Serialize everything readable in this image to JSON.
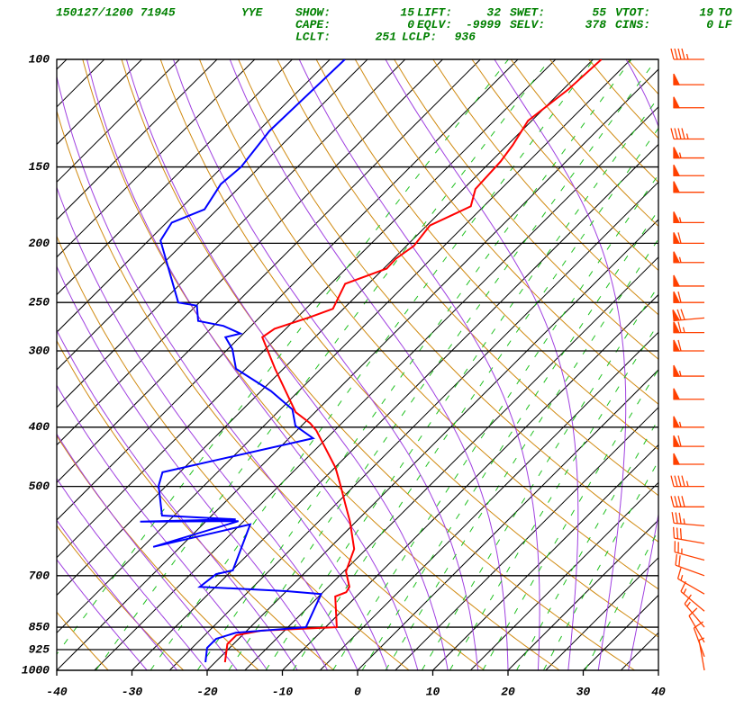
{
  "header": {
    "time_station": "150127/1200 71945",
    "station": "YYE",
    "rows": [
      [
        {
          "label": "SHOW:",
          "value": 15
        },
        {
          "label": "LIFT:",
          "value": 32
        },
        {
          "label": "SWET:",
          "value": 55
        },
        {
          "label": "VTOT:",
          "value": 19
        },
        {
          "label": "TO"
        }
      ],
      [
        {
          "label": "CAPE:",
          "value": 0
        },
        {
          "label": "EQLV:",
          "value": -9999
        },
        {
          "label": "SELV:",
          "value": 378
        },
        {
          "label": "CINS:",
          "value": 0
        },
        {
          "label": "LF"
        }
      ],
      [
        {
          "label": "LCLT:",
          "value": 251
        },
        {
          "label": "LCLP:",
          "value": 936
        }
      ]
    ]
  },
  "chart_data": {
    "type": "skewt",
    "xlim": [
      -40,
      40
    ],
    "xticks": [
      -40,
      -30,
      -20,
      -10,
      0,
      10,
      20,
      30,
      40
    ],
    "ylim": [
      1000,
      100
    ],
    "yticks": [
      100,
      150,
      200,
      250,
      300,
      400,
      500,
      700,
      850,
      925,
      1000
    ],
    "log_scale": true,
    "grid": true,
    "series": [
      {
        "color": "#ff0000",
        "p": [
          970,
          906,
          876,
          861,
          850,
          757,
          745,
          730,
          689,
          633,
          571,
          534,
          499,
          466,
          405,
          394,
          378,
          321,
          285,
          276,
          264,
          256,
          233,
          220,
          212,
          202,
          187,
          174,
          163,
          147,
          138,
          126,
          112,
          100
        ],
        "values": [
          -18.7,
          -20.8,
          -20.8,
          -18.1,
          -8.5,
          -12.8,
          -11.9,
          -12.2,
          -14.7,
          -16.6,
          -20.8,
          -23.8,
          -26.8,
          -29.9,
          -37.4,
          -39.2,
          -42.6,
          -51.1,
          -57.0,
          -56.5,
          -53.3,
          -51.4,
          -53.1,
          -49.6,
          -49.7,
          -49.0,
          -49.6,
          -46.7,
          -48.4,
          -48.7,
          -49.3,
          -50.5,
          -49.3,
          -48.9
        ]
      },
      {
        "color": "#0000ff",
        "p": [
          970,
          919,
          888,
          868,
          850,
          750,
          742,
          730,
          696,
          686,
          577,
          628,
          570,
          571,
          566,
          558,
          499,
          474,
          417,
          398,
          374,
          349,
          321,
          298,
          285,
          281,
          273,
          268,
          253,
          250,
          198,
          185,
          176,
          160,
          150,
          131,
          100
        ],
        "values": [
          -21.3,
          -23.0,
          -23.0,
          -21.2,
          -12.6,
          -15.0,
          -20.0,
          -32.1,
          -31.6,
          -29.9,
          -33.7,
          -43.6,
          -35.7,
          -48.7,
          -36.3,
          -46.6,
          -51.0,
          -52.3,
          -36.8,
          -40.8,
          -43.4,
          -48.7,
          -56.3,
          -59.4,
          -61.9,
          -60.4,
          -63.7,
          -67.7,
          -69.9,
          -72.8,
          -83.4,
          -84.3,
          -81.7,
          -82.9,
          -82.5,
          -83.5,
          -83.0
        ]
      }
    ],
    "winds": {
      "color": "#ff4000",
      "p": [
        100,
        110,
        120,
        135,
        145,
        155,
        165,
        185,
        200,
        215,
        235,
        250,
        265,
        280,
        300,
        330,
        360,
        400,
        430,
        460,
        500,
        540,
        580,
        620,
        660,
        700,
        750,
        800,
        850,
        900,
        950,
        1000
      ],
      "direction": [
        270,
        270,
        270,
        270,
        270,
        270,
        270,
        270,
        270,
        270,
        270,
        270,
        265,
        270,
        270,
        270,
        270,
        270,
        270,
        270,
        270,
        270,
        275,
        280,
        285,
        290,
        300,
        310,
        320,
        330,
        340,
        350
      ],
      "speed": [
        45,
        50,
        50,
        45,
        55,
        50,
        50,
        55,
        60,
        55,
        50,
        60,
        70,
        65,
        60,
        55,
        50,
        55,
        60,
        50,
        45,
        40,
        35,
        30,
        25,
        20,
        15,
        15,
        15,
        10,
        10,
        5
      ]
    }
  }
}
